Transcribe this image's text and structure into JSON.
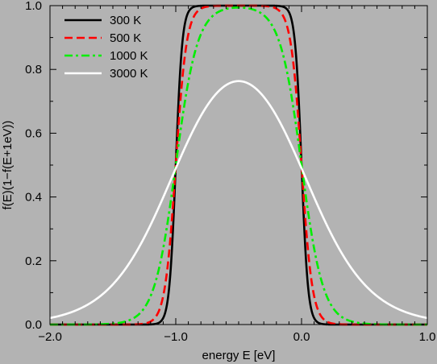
{
  "chart_data": {
    "type": "line",
    "xlabel": "energy E [eV]",
    "ylabel": "f(E)(1−f(E+1eV))",
    "xlim": [
      -2.0,
      1.0
    ],
    "ylim": [
      0.0,
      1.0
    ],
    "x_tick_labels": [
      "−2.0",
      "−1.0",
      "0.0",
      "1.0"
    ],
    "x_tick_values": [
      -2.0,
      -1.0,
      0.0,
      1.0
    ],
    "y_tick_labels": [
      "0.0",
      "0.2",
      "0.4",
      "0.6",
      "0.8",
      "1.0"
    ],
    "y_tick_values": [
      0.0,
      0.2,
      0.4,
      0.6,
      0.8,
      1.0
    ],
    "grid": false,
    "legend_position": "top-left",
    "series": [
      {
        "name": "300 K",
        "temperature_K": 300,
        "color": "#000000",
        "dash": "solid"
      },
      {
        "name": "500 K",
        "temperature_K": 500,
        "color": "#ff0000",
        "dash": "dashed"
      },
      {
        "name": "1000 K",
        "temperature_K": 1000,
        "color": "#00ee00",
        "dash": "dashdot"
      },
      {
        "name": "3000 K",
        "temperature_K": 3000,
        "color": "#ffffff",
        "dash": "solid"
      }
    ]
  },
  "colors": {
    "background": "#b3b3b3"
  }
}
